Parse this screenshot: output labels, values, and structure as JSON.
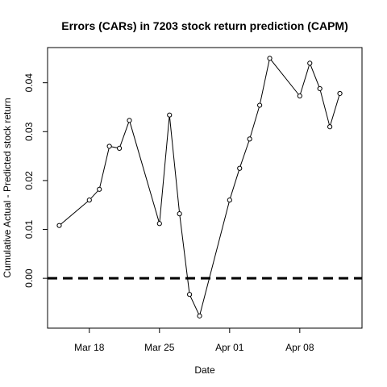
{
  "chart_data": {
    "type": "line",
    "title": "Errors (CARs) in 7203 stock return prediction (CAPM)",
    "xlabel": "Date",
    "ylabel": "Cumulative Actual - Predicted stock return",
    "x_ticks": [
      {
        "date": "2019-03-18",
        "label": "Mar 18"
      },
      {
        "date": "2019-03-25",
        "label": "Mar 25"
      },
      {
        "date": "2019-04-01",
        "label": "Apr 01"
      },
      {
        "date": "2019-04-08",
        "label": "Apr 08"
      }
    ],
    "y_ticks": [
      "0.00",
      "0.01",
      "0.02",
      "0.03",
      "0.04"
    ],
    "xlim": [
      "2019-03-13T20:00",
      "2019-04-14T05:00"
    ],
    "ylim": [
      -0.0102,
      0.0472
    ],
    "reference_line": {
      "y": 0,
      "style": "dashed"
    },
    "grid": false,
    "series": [
      {
        "x": [
          "2019-03-15",
          "2019-03-18",
          "2019-03-19",
          "2019-03-20",
          "2019-03-21",
          "2019-03-22",
          "2019-03-25",
          "2019-03-26",
          "2019-03-27",
          "2019-03-28",
          "2019-03-29",
          "2019-04-01",
          "2019-04-02",
          "2019-04-03",
          "2019-04-04",
          "2019-04-05",
          "2019-04-08",
          "2019-04-09",
          "2019-04-10",
          "2019-04-11",
          "2019-04-12"
        ],
        "y": [
          0.0108,
          0.016,
          0.0182,
          0.027,
          0.0266,
          0.0323,
          0.0112,
          0.0334,
          0.0132,
          -0.0033,
          -0.0077,
          0.016,
          0.0225,
          0.0285,
          0.0354,
          0.045,
          0.0373,
          0.044,
          0.0388,
          0.031,
          0.0378
        ]
      }
    ]
  }
}
